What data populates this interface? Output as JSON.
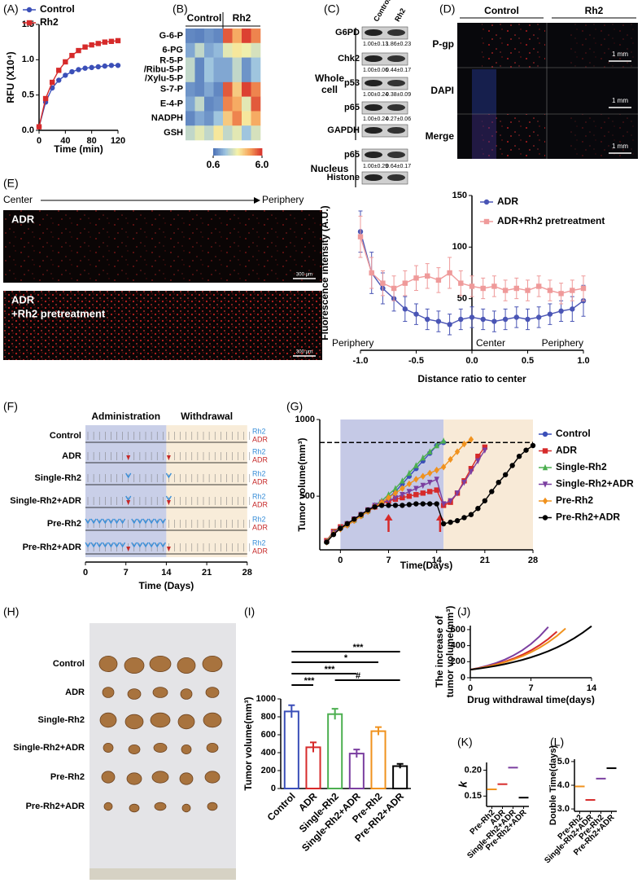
{
  "panel_labels": [
    "(A)",
    "(B)",
    "(C)",
    "(D)",
    "(E)",
    "(F)",
    "(G)",
    "(H)",
    "(I)",
    "(J)",
    "(K)",
    "(L)"
  ],
  "blot": {
    "columns": [
      "Control",
      "Rh2"
    ],
    "sections": [
      {
        "name": [
          "Whole",
          "cell"
        ],
        "rows": [
          {
            "protein": "G6PD",
            "quant": [
              "1.00±0.13",
              "1.86±0.23"
            ]
          },
          {
            "protein": "Chk2",
            "quant": [
              "1.00±0.06",
              "0.44±0.17"
            ]
          },
          {
            "protein": "p53",
            "quant": [
              "1.00±0.24",
              "0.38±0.09"
            ]
          },
          {
            "protein": "p65",
            "quant": [
              "1.00±0.24",
              "0.27±0.06"
            ]
          },
          {
            "protein": "GAPDH"
          }
        ]
      },
      {
        "name": [
          "Nucleus"
        ],
        "rows": [
          {
            "protein": "p65",
            "quant": [
              "1.00±0.29",
              "0.64±0.17"
            ]
          },
          {
            "protein": "Histone"
          }
        ]
      }
    ]
  },
  "imaging_d": {
    "columns": [
      "Control",
      "Rh2"
    ],
    "rows": [
      "P-gp",
      "DAPI",
      "Merge"
    ],
    "scale": "1 mm"
  },
  "imaging_e": {
    "from": "Center",
    "to": "Periphery",
    "panels": [
      [
        "ADR"
      ],
      [
        "ADR",
        "+Rh2 pretreatment"
      ]
    ],
    "scale": "300 μm"
  },
  "schedule": {
    "phases": [
      "Administration",
      "Withdrawal"
    ],
    "agents": [
      "Rh2",
      "ADR"
    ],
    "ticks": [
      0,
      7,
      14,
      21,
      28
    ],
    "xlabel": "Time (Days)",
    "groups": [
      {
        "name": "Control",
        "Rh2": [],
        "ADR": []
      },
      {
        "name": "ADR",
        "Rh2": [],
        "ADR": [
          7,
          14
        ]
      },
      {
        "name": "Single-Rh2",
        "Rh2": [
          7,
          14
        ],
        "ADR": []
      },
      {
        "name": "Single-Rh2+ADR",
        "Rh2": [
          7,
          14
        ],
        "ADR": [
          7,
          14
        ]
      },
      {
        "name": "Pre-Rh2",
        "Rh2": [
          0,
          1,
          2,
          3,
          4,
          5,
          6,
          8,
          9,
          10,
          11,
          12,
          13
        ],
        "ADR": []
      },
      {
        "name": "Pre-Rh2+ADR",
        "Rh2": [
          0,
          1,
          2,
          3,
          4,
          5,
          6,
          8,
          9,
          10,
          11,
          12,
          13
        ],
        "ADR": [
          7,
          14
        ]
      }
    ]
  },
  "photo": {
    "groups": [
      "Control",
      "ADR",
      "Single-Rh2",
      "Single-Rh2+ADR",
      "Pre-Rh2",
      "Pre-Rh2+ADR"
    ]
  },
  "chart_data": [
    {
      "type": "line",
      "xlabel": "Time (min)",
      "ylabel": "RFU (X10⁴)",
      "x": [
        0,
        10,
        20,
        30,
        40,
        50,
        60,
        70,
        80,
        90,
        100,
        110,
        120
      ],
      "xlim": [
        0,
        120
      ],
      "xticks": [
        0,
        40,
        80,
        120
      ],
      "ylim": [
        0,
        1.5
      ],
      "yticks": [
        {
          "value": 0,
          "label": "0.0"
        },
        0.5,
        {
          "value": 1,
          "label": "1.0"
        },
        1.5
      ],
      "series": [
        {
          "name": "Control",
          "color": "#3b4fb8",
          "marker": "circle",
          "values": [
            0.05,
            0.4,
            0.6,
            0.71,
            0.78,
            0.83,
            0.86,
            0.88,
            0.89,
            0.9,
            0.91,
            0.92,
            0.92
          ]
        },
        {
          "name": "Rh2",
          "color": "#d62a2a",
          "marker": "square",
          "values": [
            0.05,
            0.45,
            0.68,
            0.85,
            0.97,
            1.06,
            1.13,
            1.18,
            1.21,
            1.23,
            1.25,
            1.26,
            1.27
          ]
        }
      ]
    },
    {
      "type": "heatmap",
      "groups": [
        "Control",
        "Rh2"
      ],
      "rows": [
        "G-6-P",
        "6-PG",
        [
          "R-5-P",
          "/Ribu-5-P",
          "/Xylu-5-P"
        ],
        "S-7-P",
        "E-4-P",
        "NADPH",
        "GSH"
      ],
      "values": [
        [
          1.0,
          0.9,
          1.2,
          1.0,
          5.5,
          4.5,
          5.8,
          5.0
        ],
        [
          1.5,
          2.5,
          1.5,
          1.8,
          3.0,
          3.5,
          3.2,
          2.8
        ],
        [
          2.5,
          1.0,
          2.0,
          1.5,
          1.5,
          2.5,
          1.2,
          2.0
        ],
        [
          1.2,
          1.0,
          1.5,
          1.0,
          5.5,
          4.0,
          5.8,
          5.0
        ],
        [
          1.5,
          2.5,
          1.0,
          1.2,
          5.0,
          4.5,
          3.0,
          5.5
        ],
        [
          1.0,
          1.5,
          1.2,
          2.0,
          4.0,
          5.0,
          3.5,
          4.5
        ],
        [
          2.5,
          3.0,
          2.5,
          3.5,
          2.5,
          3.0,
          2.0,
          2.8
        ]
      ],
      "colormap": [
        "#4a6fb5",
        "#9cc3e0",
        "#f6f3a8",
        "#f6a25a",
        "#d7302b"
      ],
      "clim": [
        0.6,
        6
      ],
      "cticks": [
        0.6,
        {
          "value": 6,
          "label": "6.0"
        }
      ]
    },
    {
      "type": "line",
      "xlabel": "Distance ratio to center",
      "ylabel": "Fluorescence intensity (A.U.)",
      "annotations": [
        "Periphery",
        "Center",
        "Periphery"
      ],
      "yaxis_at": 0,
      "x": [
        -1,
        -0.9,
        -0.8,
        -0.7,
        -0.6,
        -0.5,
        -0.4,
        -0.3,
        -0.2,
        -0.1,
        0,
        0.1,
        0.2,
        0.3,
        0.4,
        0.5,
        0.6,
        0.7,
        0.8,
        0.9,
        1
      ],
      "xlim": [
        -1,
        1
      ],
      "xticks": [
        {
          "value": -1,
          "label": "-1.0"
        },
        -0.5,
        {
          "value": 0,
          "label": "0.0"
        },
        0.5,
        {
          "value": 1,
          "label": "1.0"
        }
      ],
      "ylim": [
        0,
        150
      ],
      "yticks": [
        50,
        100,
        150
      ],
      "series": [
        {
          "name": "ADR",
          "color": "#4a55b5",
          "marker": "circle",
          "values": [
            115,
            75,
            60,
            50,
            40,
            35,
            30,
            28,
            25,
            30,
            32,
            30,
            28,
            30,
            32,
            30,
            32,
            35,
            38,
            40,
            48
          ],
          "errors": [
            20,
            20,
            15,
            12,
            12,
            10,
            10,
            10,
            10,
            10,
            10,
            10,
            10,
            10,
            10,
            10,
            10,
            10,
            10,
            12,
            15
          ]
        },
        {
          "name": "ADR+Rh2 pretreatment",
          "color": "#ef9a9a",
          "marker": "square",
          "values": [
            110,
            75,
            65,
            60,
            65,
            70,
            72,
            68,
            75,
            65,
            62,
            60,
            62,
            58,
            60,
            58,
            62,
            58,
            55,
            58,
            60
          ],
          "errors": [
            20,
            15,
            12,
            12,
            12,
            12,
            12,
            12,
            15,
            12,
            10,
            10,
            10,
            10,
            10,
            10,
            10,
            10,
            10,
            10,
            12
          ]
        }
      ]
    },
    {
      "type": "line",
      "xlabel": "Time(Days)",
      "ylabel": "Tumor volume(mm³)",
      "bands": [
        {
          "from": 0,
          "to": 15,
          "color": "#c5c9e6"
        },
        {
          "from": 15,
          "to": 28,
          "color": "#f8ead7"
        }
      ],
      "hline": 850,
      "arrows": [
        7,
        14.5
      ],
      "arrow_color": "#d62a2a",
      "x": [
        -2,
        -1,
        0,
        1,
        2,
        3,
        4,
        5,
        6,
        7,
        8,
        9,
        10,
        11,
        12,
        13,
        14,
        15,
        16,
        17,
        18,
        19,
        20,
        21,
        22,
        23,
        24,
        25,
        26,
        27,
        28
      ],
      "xlim": [
        -3,
        28
      ],
      "xticks": [
        0,
        7,
        14,
        21,
        28
      ],
      "ylim": [
        150,
        1000
      ],
      "yticks": [
        500,
        1000
      ],
      "series": [
        {
          "name": "Control",
          "color": "#3b4fb8",
          "marker": "circle",
          "values": [
            200,
            260,
            290,
            310,
            340,
            370,
            400,
            430,
            460,
            490,
            530,
            580,
            630,
            680,
            730,
            780,
            830,
            850,
            null,
            null,
            null,
            null,
            null,
            null,
            null,
            null,
            null,
            null,
            null,
            null,
            null
          ]
        },
        {
          "name": "ADR",
          "color": "#d62a2a",
          "marker": "square",
          "values": [
            210,
            270,
            300,
            320,
            350,
            380,
            410,
            430,
            450,
            470,
            480,
            490,
            500,
            510,
            520,
            530,
            540,
            440,
            460,
            520,
            600,
            680,
            760,
            820,
            null,
            null,
            null,
            null,
            null,
            null,
            null
          ]
        },
        {
          "name": "Single-Rh2",
          "color": "#4caf50",
          "marker": "triangle",
          "values": [
            205,
            265,
            295,
            320,
            345,
            375,
            405,
            440,
            470,
            510,
            550,
            600,
            650,
            700,
            750,
            790,
            830,
            860,
            null,
            null,
            null,
            null,
            null,
            null,
            null,
            null,
            null,
            null,
            null,
            null,
            null
          ]
        },
        {
          "name": "Single-Rh2+ADR",
          "color": "#7b3fa0",
          "marker": "invtriangle",
          "values": [
            200,
            260,
            290,
            320,
            350,
            380,
            410,
            440,
            460,
            470,
            490,
            510,
            530,
            550,
            570,
            590,
            610,
            450,
            470,
            520,
            590,
            660,
            730,
            800,
            null,
            null,
            null,
            null,
            null,
            null,
            null
          ]
        },
        {
          "name": "Pre-Rh2",
          "color": "#f0921e",
          "marker": "diamond",
          "values": [
            200,
            255,
            285,
            310,
            340,
            370,
            400,
            430,
            460,
            490,
            520,
            550,
            580,
            610,
            630,
            650,
            670,
            690,
            740,
            790,
            840,
            870,
            null,
            null,
            null,
            null,
            null,
            null,
            null,
            null,
            null
          ]
        },
        {
          "name": "Pre-Rh2+ADR",
          "color": "#000000",
          "marker": "circle",
          "values": [
            200,
            250,
            290,
            320,
            350,
            380,
            410,
            430,
            440,
            440,
            440,
            440,
            445,
            450,
            450,
            450,
            450,
            320,
            330,
            340,
            360,
            380,
            420,
            470,
            530,
            590,
            640,
            700,
            760,
            800,
            830
          ]
        }
      ]
    },
    {
      "type": "bar",
      "ylabel": "Tumor volume(mm³)",
      "categories": [
        "Control",
        "ADR",
        "Single-Rh2",
        "Single-Rh2+ADR",
        "Pre-Rh2",
        "Pre-Rh2+ADR"
      ],
      "values": [
        860,
        460,
        830,
        390,
        640,
        250
      ],
      "errors": [
        70,
        55,
        60,
        45,
        45,
        25
      ],
      "colors": [
        "#3b4fb8",
        "#d62a2a",
        "#4caf50",
        "#7b3fa0",
        "#f0921e",
        "#000000"
      ],
      "ylim": [
        0,
        1000
      ],
      "yticks": [
        0,
        200,
        400,
        600,
        800,
        1000
      ],
      "annotations": [
        "***",
        "*",
        "***",
        "***",
        "#"
      ]
    },
    {
      "type": "line",
      "xlabel": "Drug withdrawal time(days)",
      "ylabel": [
        "The increase of",
        "tumor volume(mm³)"
      ],
      "x": [
        0,
        1,
        2,
        3,
        4,
        5,
        6,
        7,
        8,
        9,
        10,
        11,
        12,
        13,
        14
      ],
      "xlim": [
        0,
        14
      ],
      "xticks": [
        0,
        7,
        14
      ],
      "ylim": [
        0,
        650
      ],
      "yticks": [
        0,
        200,
        400,
        600
      ],
      "series": [
        {
          "color": "#7b3fa0",
          "values": [
            100,
            123,
            151,
            185,
            227,
            279,
            342,
            420,
            516,
            633,
            null,
            null,
            null,
            null,
            null
          ]
        },
        {
          "color": "#d62a2a",
          "values": [
            100,
            119,
            142,
            169,
            201,
            240,
            286,
            341,
            406,
            483,
            575,
            null,
            null,
            null,
            null
          ]
        },
        {
          "color": "#f0921e",
          "values": [
            100,
            118,
            139,
            164,
            194,
            228,
            269,
            318,
            375,
            442,
            521,
            615,
            null,
            null,
            null
          ]
        },
        {
          "color": "#000000",
          "values": [
            100,
            114,
            130,
            149,
            170,
            195,
            222,
            254,
            290,
            331,
            378,
            432,
            493,
            563,
            643
          ]
        }
      ]
    },
    {
      "type": "dot",
      "ylabel": "k",
      "categories": [
        "Pre-Rh2",
        "ADR",
        "Single-Rh2+ADR",
        "Pre-Rh2+ADR"
      ],
      "values": [
        0.163,
        0.173,
        0.205,
        0.147
      ],
      "colors": [
        "#f0921e",
        "#d62a2a",
        "#7b3fa0",
        "#000000"
      ],
      "ylim": [
        0.13,
        0.215
      ],
      "yticks": [
        0.15,
        {
          "value": 0.2,
          "label": "0.20"
        }
      ]
    },
    {
      "type": "dot",
      "ylabel": "Double Time(days)",
      "categories": [
        "Pre-Rh2",
        "Single-Rh2+ADR",
        "Pre-Rh2",
        "Pre-Rh2+ADR"
      ],
      "values": [
        3.95,
        3.38,
        4.28,
        4.72
      ],
      "colors": [
        "#f0921e",
        "#d62a2a",
        "#7b3fa0",
        "#000000"
      ],
      "ylim": [
        2.9,
        5.1
      ],
      "yticks": [
        {
          "value": 3,
          "label": "3.0"
        },
        {
          "value": 4,
          "label": "4.0"
        },
        {
          "value": 5,
          "label": "5.0"
        }
      ]
    }
  ]
}
